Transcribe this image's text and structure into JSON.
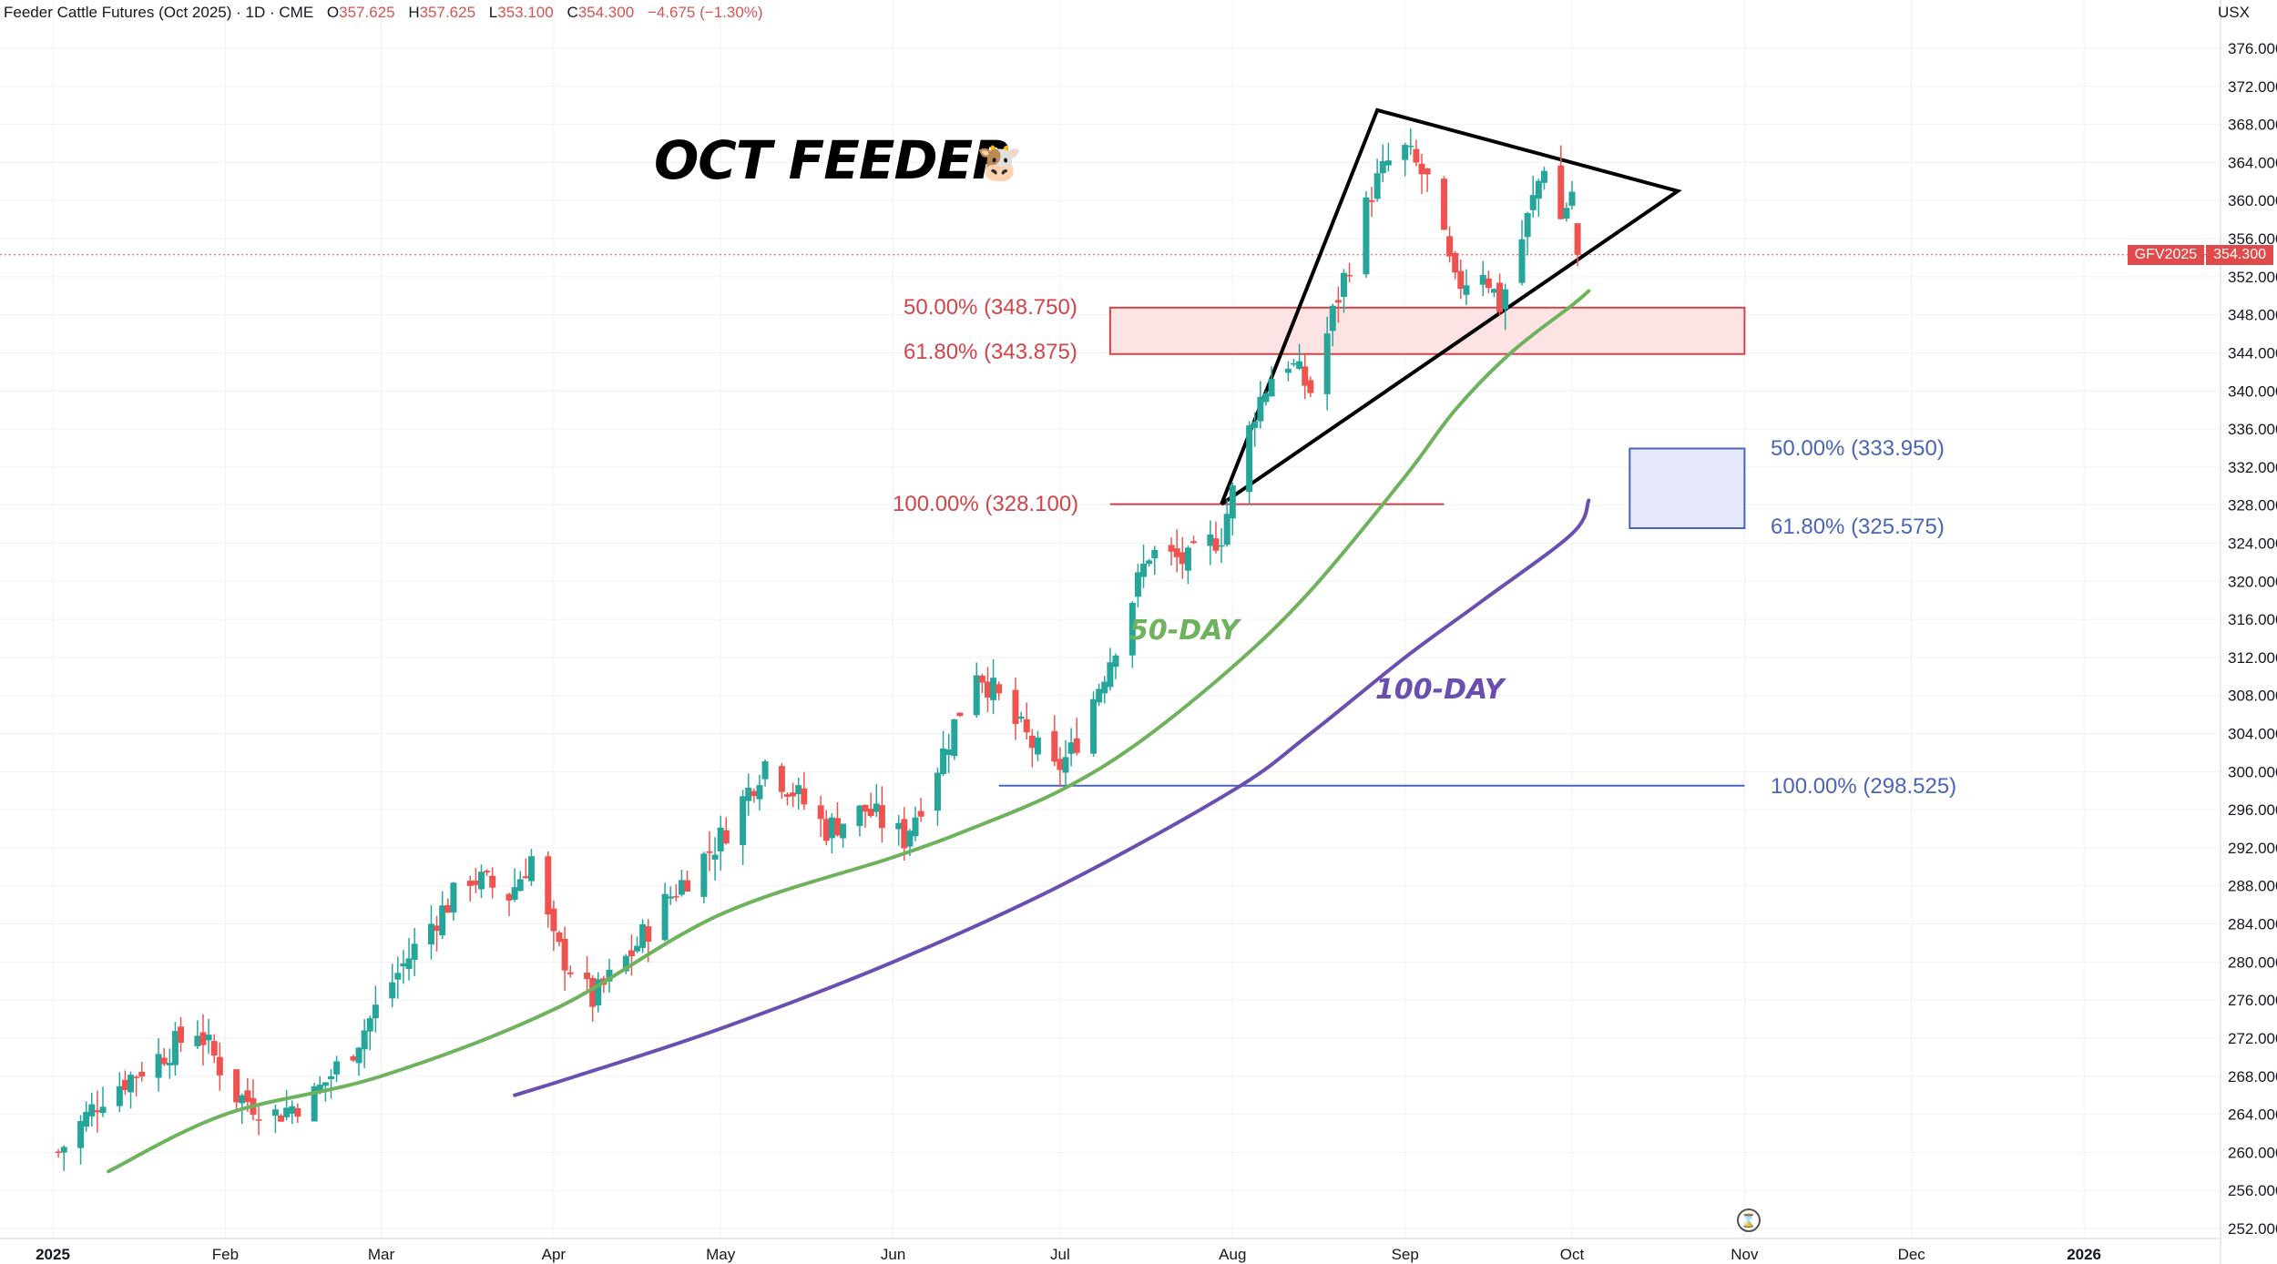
{
  "header": {
    "symbol": "Feeder Cattle Futures (Oct 2025)",
    "interval": "1D",
    "exchange": "CME",
    "o_label": "O",
    "o_value": "357.625",
    "h_label": "H",
    "h_value": "357.625",
    "l_label": "L",
    "l_value": "353.100",
    "c_label": "C",
    "c_value": "354.300",
    "change": "−4.675 (−1.30%)",
    "currency": "USX"
  },
  "annotations": {
    "title": "OCT FEEDER",
    "cow_icon": "cow-face-icon",
    "ma50_label": "50-DAY",
    "ma100_label": "100-DAY",
    "fib_red": [
      {
        "text": "50.00% (348.750)",
        "level": 348.75
      },
      {
        "text": "61.80% (343.875)",
        "level": 343.875
      },
      {
        "text": "100.00% (328.100)",
        "level": 328.1
      }
    ],
    "fib_blue": [
      {
        "text": "50.00% (333.950)",
        "level": 333.95
      },
      {
        "text": "61.80% (325.575)",
        "level": 325.575
      },
      {
        "text": "100.00% (298.525)",
        "level": 298.525
      }
    ]
  },
  "price_tag": {
    "ticker": "GFV2025",
    "price": "354.300"
  },
  "colors": {
    "up": "#26a69a",
    "down": "#ef5350",
    "ma50": "#6fb25e",
    "ma100": "#6a4fb0",
    "fib_red": "#d0454a",
    "fib_blue": "#4a64b8",
    "zone_red_fill": "#fde3e3",
    "zone_blue_fill": "#e6e9fb"
  },
  "chart_data": {
    "type": "candlestick",
    "title": "",
    "y_axis_ticks": [
      "376.000",
      "372.000",
      "368.000",
      "364.000",
      "360.000",
      "356.000",
      "352.000",
      "348.000",
      "344.000",
      "340.000",
      "336.000",
      "332.000",
      "328.000",
      "324.000",
      "320.000",
      "316.000",
      "312.000",
      "308.000",
      "304.000",
      "300.000",
      "296.000",
      "292.000",
      "288.000",
      "284.000",
      "280.000",
      "276.000",
      "272.000",
      "268.000",
      "264.000",
      "260.000",
      "256.000",
      "252.000"
    ],
    "ylim": [
      250,
      378
    ],
    "x_axis_labels": [
      "2025",
      "Feb",
      "Mar",
      "Apr",
      "May",
      "Jun",
      "Jul",
      "Aug",
      "Sep",
      "Oct",
      "Nov",
      "Dec",
      "2026"
    ],
    "x_axis_dates": [
      "2025-01-01",
      "2025-02-01",
      "2025-03-01",
      "2025-04-01",
      "2025-05-01",
      "2025-06-01",
      "2025-07-01",
      "2025-08-01",
      "2025-09-01",
      "2025-10-01",
      "2025-11-01",
      "2025-12-01",
      "2026-01-01"
    ],
    "close_path": [
      [
        "2025-01-02",
        260
      ],
      [
        "2025-01-10",
        266
      ],
      [
        "2025-01-20",
        270
      ],
      [
        "2025-01-27",
        273
      ],
      [
        "2025-02-03",
        266
      ],
      [
        "2025-02-10",
        264
      ],
      [
        "2025-02-17",
        266
      ],
      [
        "2025-02-24",
        271
      ],
      [
        "2025-03-03",
        278
      ],
      [
        "2025-03-10",
        284
      ],
      [
        "2025-03-17",
        289
      ],
      [
        "2025-03-24",
        287
      ],
      [
        "2025-03-28",
        291
      ],
      [
        "2025-04-01",
        282
      ],
      [
        "2025-04-08",
        276
      ],
      [
        "2025-04-15",
        281
      ],
      [
        "2025-04-22",
        287
      ],
      [
        "2025-05-01",
        293
      ],
      [
        "2025-05-09",
        301
      ],
      [
        "2025-05-14",
        298
      ],
      [
        "2025-05-20",
        294
      ],
      [
        "2025-05-27",
        296
      ],
      [
        "2025-06-03",
        293
      ],
      [
        "2025-06-10",
        302
      ],
      [
        "2025-06-16",
        311
      ],
      [
        "2025-06-23",
        305
      ],
      [
        "2025-06-30",
        300
      ],
      [
        "2025-07-03",
        302
      ],
      [
        "2025-07-10",
        312
      ],
      [
        "2025-07-17",
        323
      ],
      [
        "2025-07-24",
        322
      ],
      [
        "2025-07-30",
        325
      ],
      [
        "2025-08-05",
        338
      ],
      [
        "2025-08-10",
        344
      ],
      [
        "2025-08-15",
        340
      ],
      [
        "2025-08-20",
        350
      ],
      [
        "2025-08-26",
        361
      ],
      [
        "2025-08-31",
        366
      ],
      [
        "2025-09-05",
        362
      ],
      [
        "2025-09-10",
        351
      ],
      [
        "2025-09-15",
        353
      ],
      [
        "2025-09-18",
        349
      ],
      [
        "2025-09-22",
        356
      ],
      [
        "2025-09-26",
        364
      ],
      [
        "2025-09-29",
        358
      ],
      [
        "2025-10-01",
        361
      ],
      [
        "2025-10-02",
        354.3
      ]
    ],
    "last": {
      "date": "2025-10-02",
      "open": 357.625,
      "high": 357.625,
      "low": 353.1,
      "close": 354.3
    },
    "series": [
      {
        "name": "50-DAY",
        "points": [
          [
            "2025-01-11",
            258
          ],
          [
            "2025-02-01",
            264
          ],
          [
            "2025-03-01",
            268
          ],
          [
            "2025-04-01",
            275
          ],
          [
            "2025-05-01",
            285
          ],
          [
            "2025-06-01",
            291
          ],
          [
            "2025-06-15",
            294
          ],
          [
            "2025-07-01",
            298
          ],
          [
            "2025-07-15",
            303
          ],
          [
            "2025-08-01",
            311
          ],
          [
            "2025-08-15",
            319
          ],
          [
            "2025-09-01",
            331
          ],
          [
            "2025-09-10",
            338
          ],
          [
            "2025-09-20",
            344
          ],
          [
            "2025-10-01",
            349
          ],
          [
            "2025-10-04",
            350.5
          ]
        ]
      },
      {
        "name": "100-DAY",
        "points": [
          [
            "2025-03-25",
            266
          ],
          [
            "2025-04-05",
            268
          ],
          [
            "2025-05-01",
            273
          ],
          [
            "2025-06-01",
            280
          ],
          [
            "2025-07-01",
            288
          ],
          [
            "2025-08-01",
            298
          ],
          [
            "2025-08-15",
            304
          ],
          [
            "2025-09-01",
            312
          ],
          [
            "2025-09-15",
            318
          ],
          [
            "2025-10-01",
            325
          ],
          [
            "2025-10-04",
            328.5
          ]
        ]
      }
    ],
    "triangle": [
      [
        "2025-07-30",
        328.1
      ],
      [
        "2025-08-27",
        369.5
      ],
      [
        "2025-10-20",
        361
      ]
    ],
    "zones": [
      {
        "from_date": "2025-07-10",
        "to_date": "2025-11-01",
        "top": 348.75,
        "bottom": 343.875,
        "style": "red"
      },
      {
        "from_date": "2025-10-13",
        "to_date": "2025-11-01",
        "top": 333.95,
        "bottom": 325.575,
        "style": "blue"
      }
    ],
    "levels": [
      {
        "value": 328.1,
        "from_date": "2025-07-10",
        "to_date": "2025-09-08",
        "style": "red"
      },
      {
        "value": 298.525,
        "from_date": "2025-06-20",
        "to_date": "2025-11-01",
        "style": "blue"
      }
    ]
  }
}
